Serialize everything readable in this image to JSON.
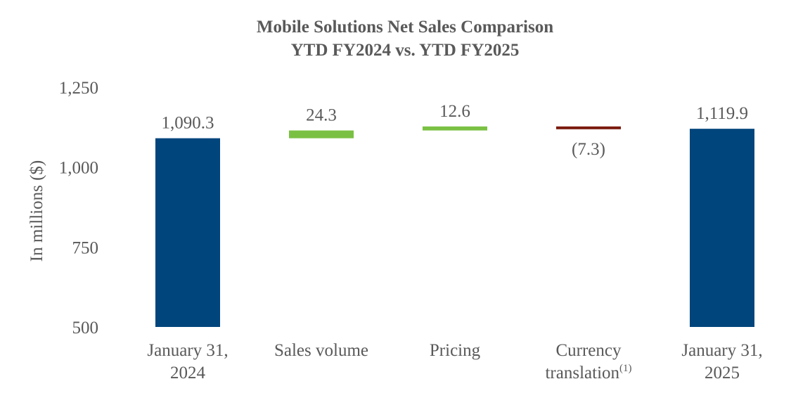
{
  "chart_data": {
    "type": "bar",
    "subtype": "waterfall",
    "title": "Mobile Solutions Net Sales Comparison",
    "subtitle": "YTD FY2024 vs. YTD FY2025",
    "ylabel": "In millions ($)",
    "ylim": [
      500,
      1250
    ],
    "yticks": [
      500,
      750,
      1000,
      1250
    ],
    "ytick_labels": [
      "500",
      "750",
      "1,000",
      "1,250"
    ],
    "grid": false,
    "legend": "none",
    "steps": [
      {
        "category_lines": [
          "January 31,",
          "2024"
        ],
        "category_superscript": "",
        "kind": "total",
        "value": 1090.3,
        "label": "1,090.3",
        "label_position": "above",
        "color": "#00457C"
      },
      {
        "category_lines": [
          "Sales volume"
        ],
        "category_superscript": "",
        "kind": "delta",
        "value": 24.3,
        "label": "24.3",
        "label_position": "above",
        "color": "#7AC143"
      },
      {
        "category_lines": [
          "Pricing"
        ],
        "category_superscript": "",
        "kind": "delta",
        "value": 12.6,
        "label": "12.6",
        "label_position": "above",
        "color": "#7AC143"
      },
      {
        "category_lines": [
          "Currency",
          "translation"
        ],
        "category_superscript": "(1)",
        "kind": "delta",
        "value": -7.3,
        "label": "(7.3)",
        "label_position": "below",
        "color": "#7B1A0E"
      },
      {
        "category_lines": [
          "January 31,",
          "2025"
        ],
        "category_superscript": "",
        "kind": "total",
        "value": 1119.9,
        "label": "1,119.9",
        "label_position": "above",
        "color": "#00457C"
      }
    ]
  }
}
